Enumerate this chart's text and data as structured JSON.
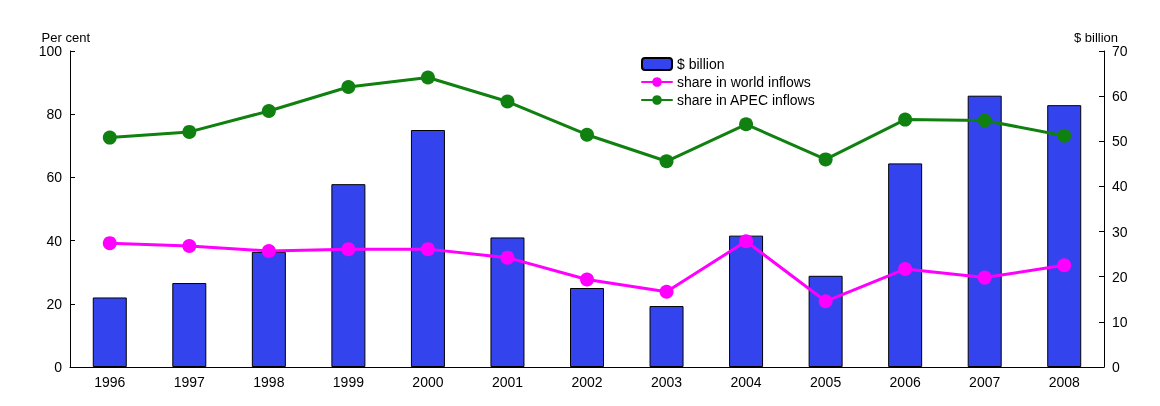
{
  "chart_data": {
    "type": "bar",
    "categories": [
      "1996",
      "1997",
      "1998",
      "1999",
      "2000",
      "2001",
      "2002",
      "2003",
      "2004",
      "2005",
      "2006",
      "2007",
      "2008"
    ],
    "ylabel": "Per cent",
    "y2label": "$ billion",
    "series": [
      {
        "name": "$ billion",
        "axis": "y2",
        "color": "#3344ee",
        "values": [
          15.4,
          18.6,
          25.5,
          40.5,
          52.5,
          28.7,
          17.5,
          13.5,
          29.1,
          20.2,
          45.1,
          60.1,
          58.0
        ]
      },
      {
        "name": "share in world inflows",
        "type": "line",
        "color": "#ff00ff",
        "values": [
          39.2,
          38.3,
          36.7,
          37.3,
          37.3,
          34.6,
          27.7,
          23.8,
          39.8,
          20.8,
          31.0,
          28.3,
          32.2
        ]
      },
      {
        "name": "share in APEC inflows",
        "type": "line",
        "color": "#108010",
        "values": [
          72.6,
          74.4,
          81.0,
          88.6,
          91.6,
          84.0,
          73.5,
          65.1,
          76.8,
          65.7,
          78.3,
          78.0,
          73.2
        ]
      }
    ],
    "ylim": [
      0,
      100
    ],
    "yticks": [
      0,
      20,
      40,
      60,
      80,
      100
    ],
    "y2lim": [
      0,
      70
    ],
    "y2ticks": [
      0,
      10,
      20,
      30,
      40,
      50,
      60,
      70
    ],
    "grid": false,
    "legend": "top",
    "marker": "circle",
    "line_style": "solid"
  }
}
